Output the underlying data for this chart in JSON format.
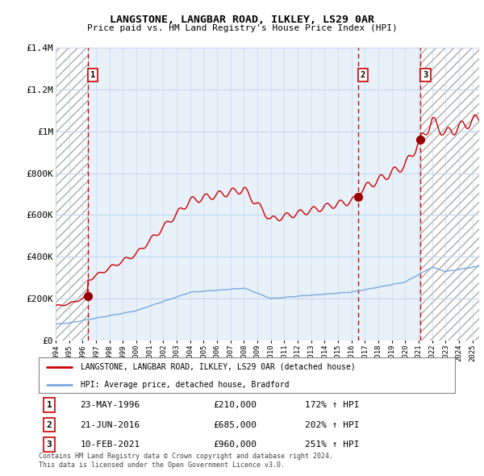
{
  "title": "LANGSTONE, LANGBAR ROAD, ILKLEY, LS29 0AR",
  "subtitle": "Price paid vs. HM Land Registry's House Price Index (HPI)",
  "ylim": [
    0,
    1400000
  ],
  "yticks": [
    0,
    200000,
    400000,
    600000,
    800000,
    1000000,
    1200000,
    1400000
  ],
  "ytick_labels": [
    "£0",
    "£200K",
    "£400K",
    "£600K",
    "£800K",
    "£1M",
    "£1.2M",
    "£1.4M"
  ],
  "xlim_start": 1994.0,
  "xlim_end": 2025.5,
  "sale_dates_year": [
    1996.38,
    2016.47,
    2021.12
  ],
  "sale_prices": [
    210000,
    685000,
    960000
  ],
  "sale_labels": [
    "1",
    "2",
    "3"
  ],
  "sale_info": [
    {
      "num": "1",
      "date": "23-MAY-1996",
      "price": "£210,000",
      "hpi": "172% ↑ HPI"
    },
    {
      "num": "2",
      "date": "21-JUN-2016",
      "price": "£685,000",
      "hpi": "202% ↑ HPI"
    },
    {
      "num": "3",
      "date": "10-FEB-2021",
      "price": "£960,000",
      "hpi": "251% ↑ HPI"
    }
  ],
  "legend_line1": "LANGSTONE, LANGBAR ROAD, ILKLEY, LS29 0AR (detached house)",
  "legend_line2": "HPI: Average price, detached house, Bradford",
  "footer1": "Contains HM Land Registry data © Crown copyright and database right 2024.",
  "footer2": "This data is licensed under the Open Government Licence v3.0.",
  "red_color": "#cc0000",
  "blue_color": "#7aaadd",
  "grid_color": "#c5d8ee",
  "background_plot": "#e8f0f8",
  "background_fig": "#ffffff"
}
